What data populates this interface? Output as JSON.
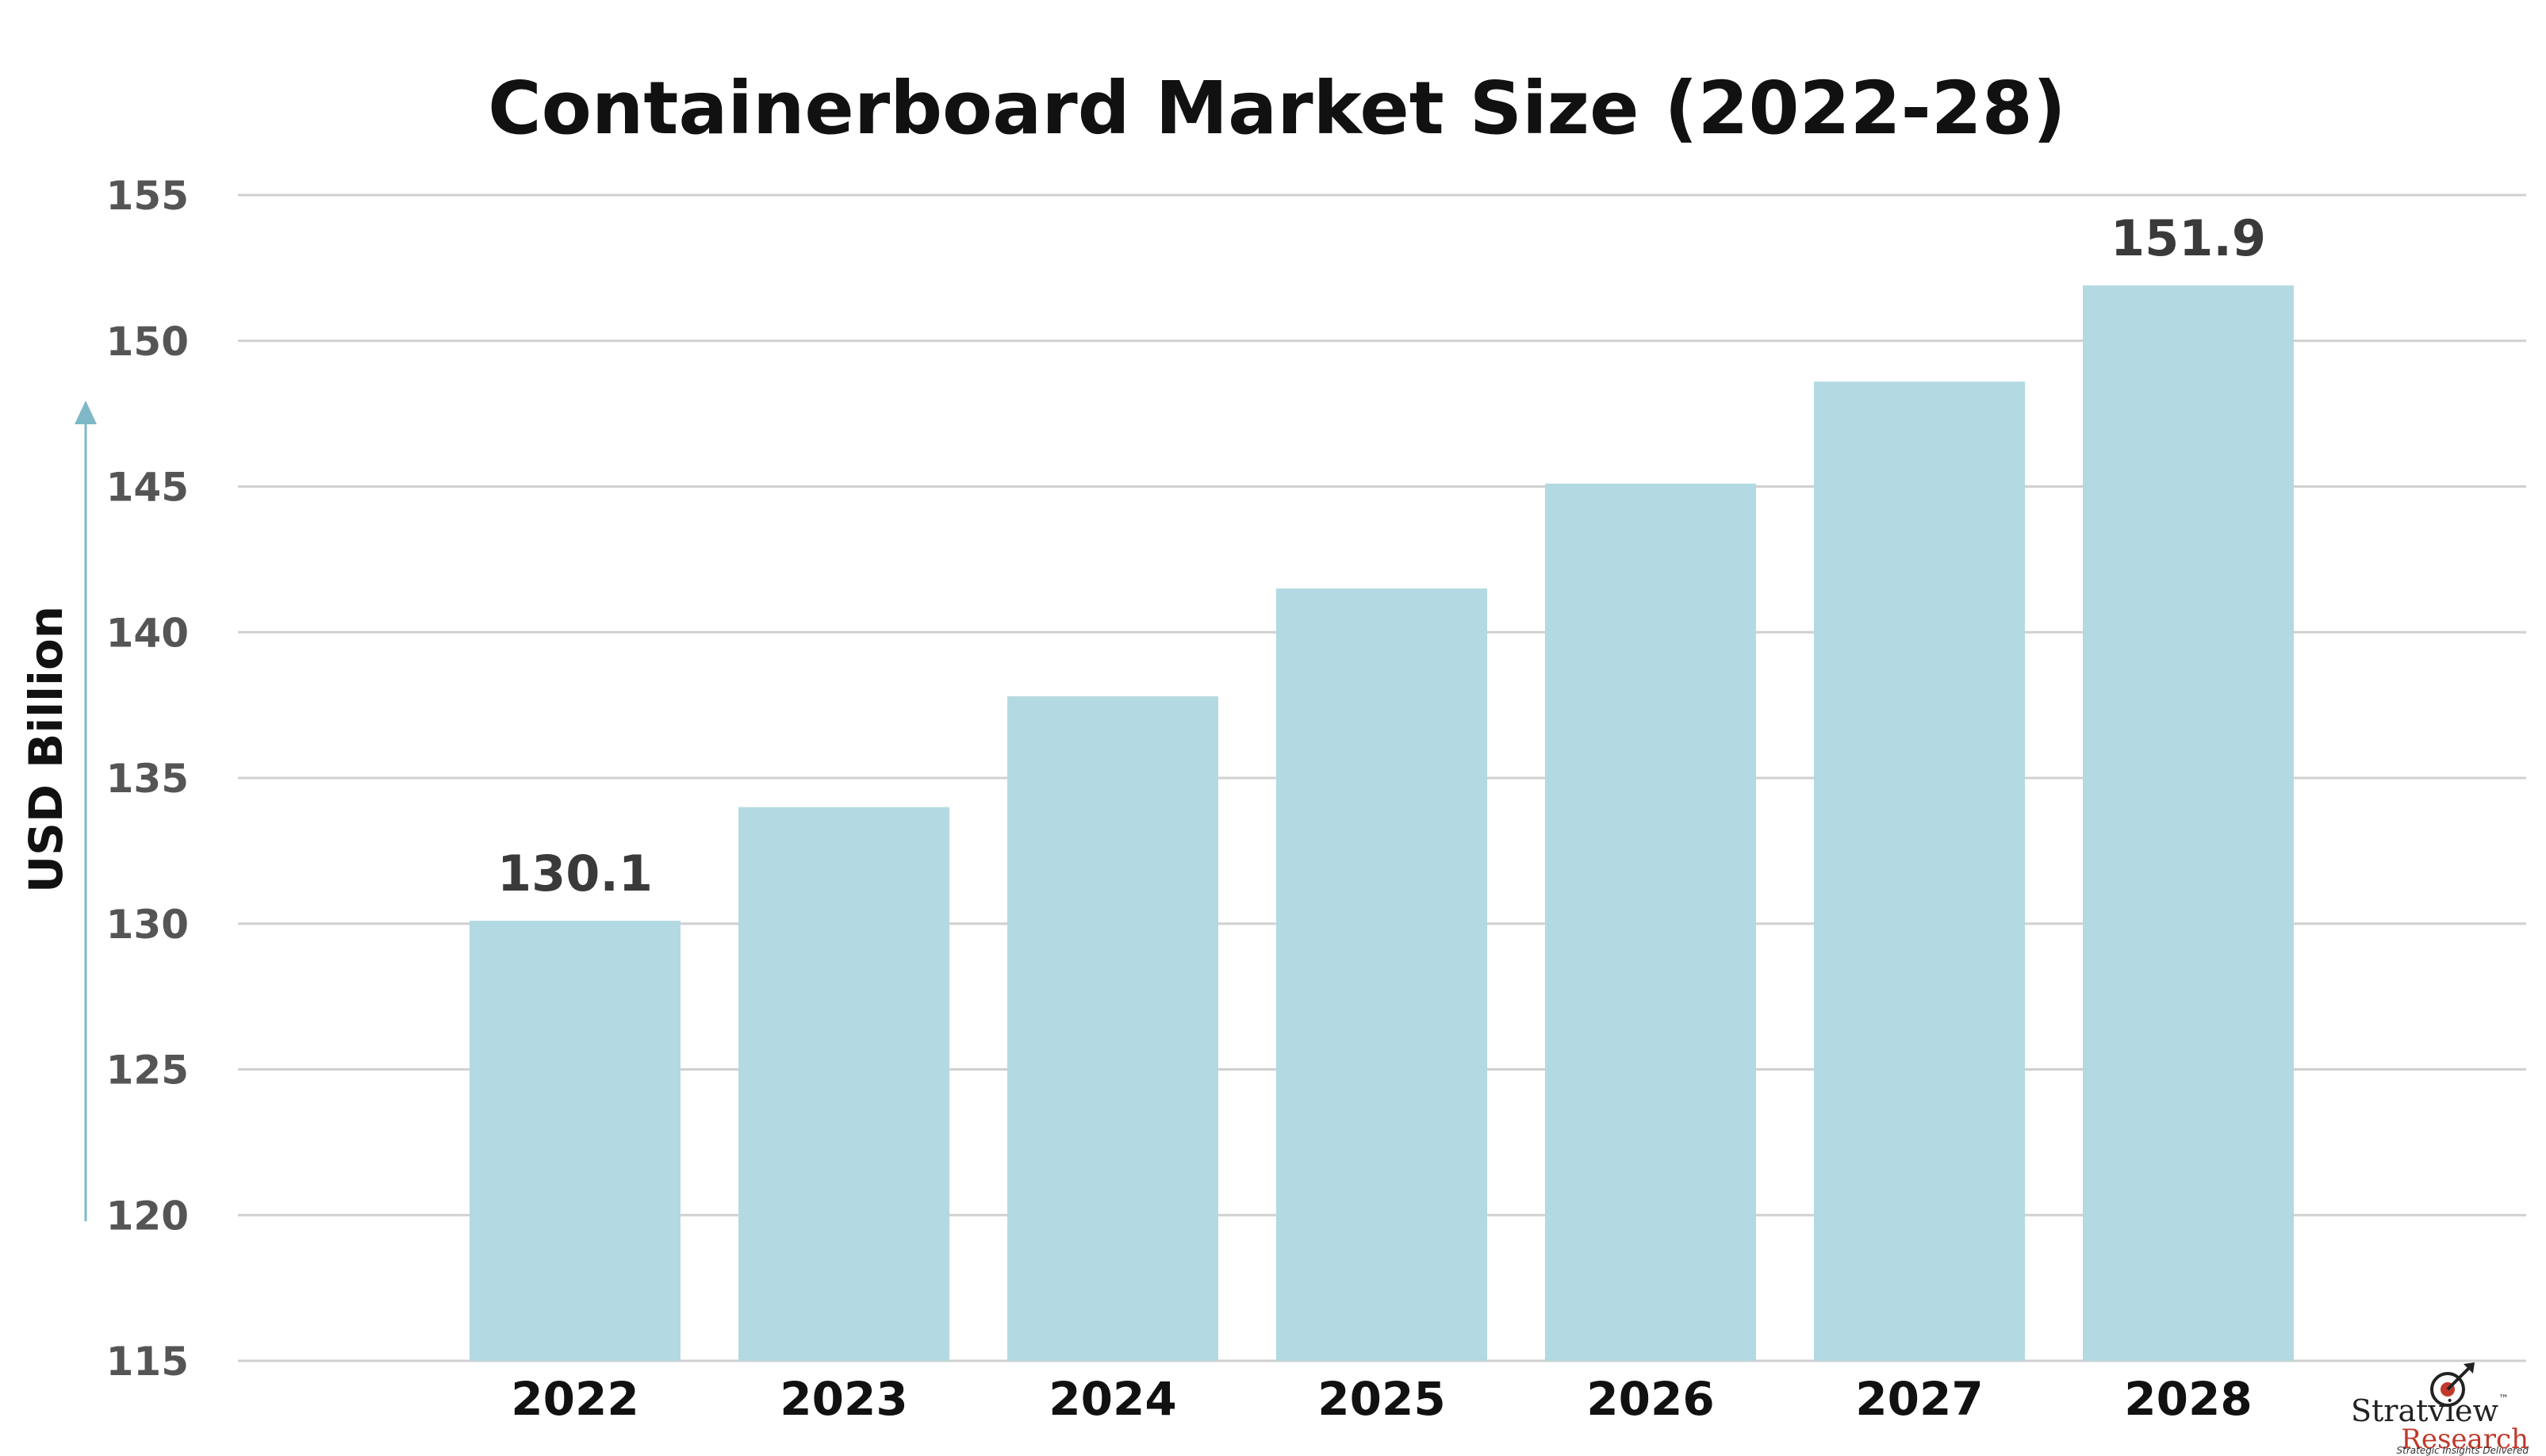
{
  "chart_data": {
    "type": "bar",
    "title": "Containerboard Market Size (2022-28)",
    "ylabel": "USD Billion",
    "xlabel": "",
    "categories": [
      "2022",
      "2023",
      "2024",
      "2025",
      "2026",
      "2027",
      "2028"
    ],
    "values": [
      130.1,
      134.0,
      137.8,
      141.5,
      145.1,
      148.6,
      151.9
    ],
    "data_labels": {
      "0": "130.1",
      "6": "151.9"
    },
    "ylim": [
      115,
      155
    ],
    "yticks": [
      115,
      120,
      125,
      130,
      135,
      140,
      145,
      150,
      155
    ],
    "grid": true,
    "legend": "none",
    "colors": {
      "bar": "#b3d9e2",
      "axis_arrow": "#7fb9c7",
      "grid": "#d0d0d0"
    }
  },
  "brand": {
    "logo_icon": "target-arrow-icon",
    "name": "Stratview",
    "name_tm": "™",
    "sub": "Research",
    "tagline": "Strategic Insights Delivered"
  }
}
